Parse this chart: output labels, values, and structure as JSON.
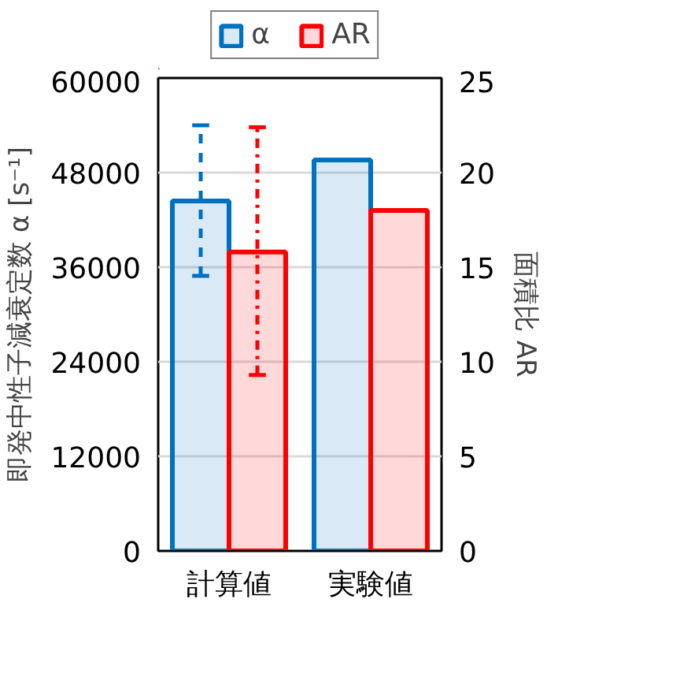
{
  "chart_data": {
    "type": "bar",
    "categories": [
      "計算値",
      "実験値"
    ],
    "ylabel": "即発中性子減衰定数 α [s⁻¹]",
    "y2label": "面積比 AR",
    "ylim": [
      0,
      60000
    ],
    "yticks": [
      0,
      12000,
      24000,
      36000,
      48000,
      60000
    ],
    "y2lim": [
      0,
      25
    ],
    "y2ticks": [
      0,
      5,
      10,
      15,
      20,
      25
    ],
    "series": [
      {
        "name": "α",
        "color": "#0070c0",
        "values": [
          44400,
          49600
        ],
        "errors": [
          [
            34900,
            54000
          ],
          null
        ]
      },
      {
        "name": "AR",
        "color": "#ff0000",
        "axis": "y2",
        "values": [
          15.8,
          18.0
        ],
        "errors": [
          [
            9.3,
            22.4
          ],
          null
        ]
      }
    ],
    "grid": "y",
    "legend": "top"
  }
}
